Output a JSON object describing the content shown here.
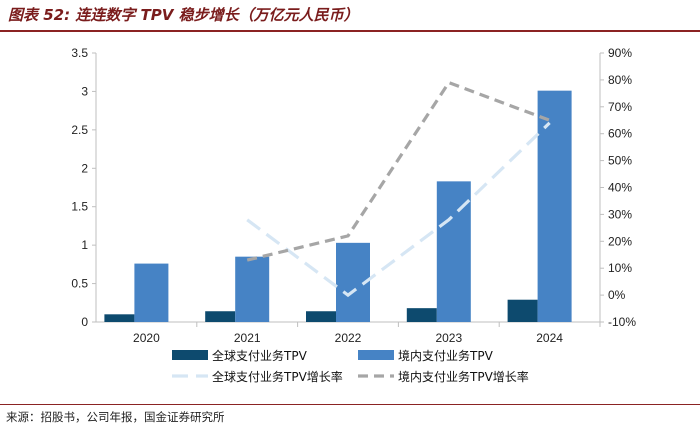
{
  "title": "图表 52: 连连数字 TPV 稳步增长（万亿元人民币）",
  "source": "来源：招股书，公司年报，国金证券研究所",
  "colors": {
    "global_bar": "#0d4a6e",
    "domestic_bar": "#4683c5",
    "global_line": "#d6e6f4",
    "domestic_line": "#a6a6a6",
    "title": "#7a1c1c"
  },
  "chart_data": {
    "type": "bar",
    "categories": [
      "2020",
      "2021",
      "2022",
      "2023",
      "2024"
    ],
    "series": [
      {
        "name": "全球支付业务TPV",
        "kind": "bar",
        "axis": "left",
        "values": [
          0.1,
          0.14,
          0.14,
          0.18,
          0.29
        ]
      },
      {
        "name": "境内支付业务TPV",
        "kind": "bar",
        "axis": "left",
        "values": [
          0.76,
          0.85,
          1.03,
          1.83,
          3.01
        ]
      },
      {
        "name": "全球支付业务TPV增长率",
        "kind": "line",
        "style": "dashed",
        "axis": "right",
        "values": [
          null,
          28,
          0,
          28,
          64
        ]
      },
      {
        "name": "境内支付业务TPV增长率",
        "kind": "line",
        "style": "dashed",
        "axis": "right",
        "values": [
          null,
          13,
          22,
          79,
          65
        ]
      }
    ],
    "y_left": {
      "min": 0,
      "max": 3.5,
      "ticks": [
        "0",
        "0.5",
        "1",
        "1.5",
        "2",
        "2.5",
        "3",
        "3.5"
      ]
    },
    "y_right": {
      "min": -10,
      "max": 90,
      "ticks": [
        "-10%",
        "0%",
        "10%",
        "20%",
        "30%",
        "40%",
        "50%",
        "60%",
        "70%",
        "80%",
        "90%"
      ]
    },
    "legend": [
      "全球支付业务TPV",
      "境内支付业务TPV",
      "全球支付业务TPV增长率",
      "境内支付业务TPV增长率"
    ],
    "legend_position": "bottom",
    "grid": false
  }
}
